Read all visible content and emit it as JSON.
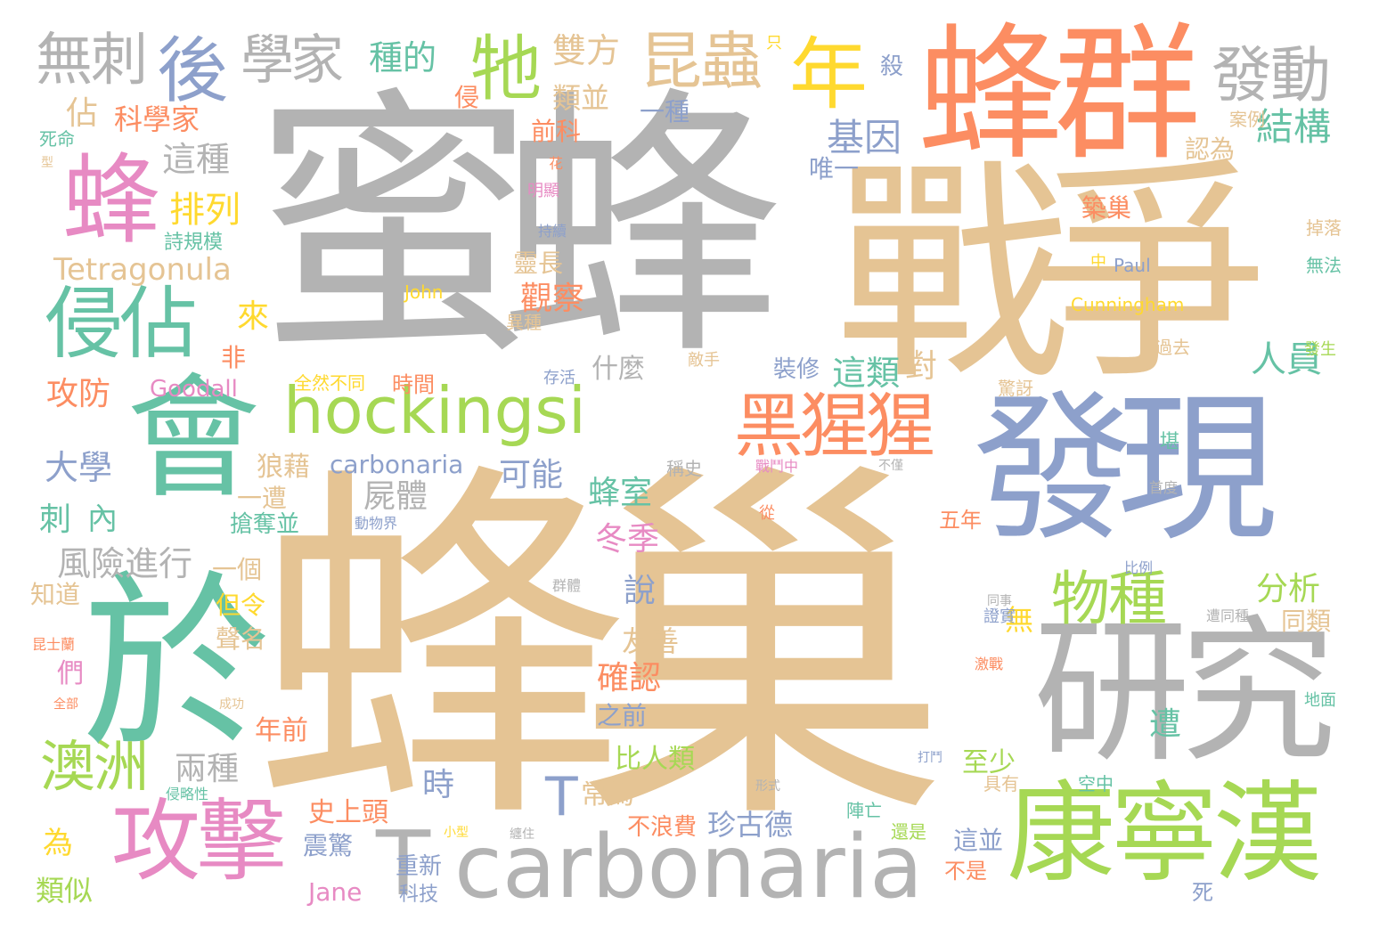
{
  "word_cloud": {
    "palette": {
      "gray": "#b3b3b3",
      "tan": "#e5c494",
      "orange": "#fc8d62",
      "teal": "#66c2a5",
      "blue": "#8da0cb",
      "pink": "#e78ac3",
      "green": "#a6d854",
      "yellow": "#ffd92f"
    },
    "words": [
      {
        "text": "蜜蜂",
        "color": "gray"
      },
      {
        "text": "蜂巢",
        "color": "tan"
      },
      {
        "text": "戰爭",
        "color": "tan"
      },
      {
        "text": "蜂群",
        "color": "orange"
      },
      {
        "text": "發現",
        "color": "blue"
      },
      {
        "text": "於",
        "color": "teal"
      },
      {
        "text": "會",
        "color": "teal"
      },
      {
        "text": "研究",
        "color": "gray"
      },
      {
        "text": "康寧漢",
        "color": "green"
      },
      {
        "text": "carbonaria",
        "color": "gray"
      },
      {
        "text": "hockingsi",
        "color": "green"
      },
      {
        "text": "攻擊",
        "color": "pink"
      },
      {
        "text": "侵佔",
        "color": "teal"
      },
      {
        "text": "蜂",
        "color": "pink"
      },
      {
        "text": "後",
        "color": "blue"
      },
      {
        "text": "牠",
        "color": "green"
      },
      {
        "text": "年",
        "color": "yellow"
      },
      {
        "text": "昆蟲",
        "color": "tan"
      },
      {
        "text": "發動",
        "color": "gray"
      },
      {
        "text": "無刺",
        "color": "gray"
      },
      {
        "text": "學家",
        "color": "gray"
      },
      {
        "text": "黑猩猩",
        "color": "orange"
      },
      {
        "text": "物種",
        "color": "green"
      },
      {
        "text": "澳洲",
        "color": "green"
      },
      {
        "text": "T",
        "color": "gray"
      },
      {
        "text": "T",
        "color": "blue"
      },
      {
        "text": "種的",
        "color": "teal"
      },
      {
        "text": "雙方",
        "color": "tan"
      },
      {
        "text": "佔",
        "color": "tan"
      },
      {
        "text": "科學家",
        "color": "orange"
      },
      {
        "text": "這種",
        "color": "gray"
      },
      {
        "text": "排列",
        "color": "yellow"
      },
      {
        "text": "Tetragonula",
        "color": "tan"
      },
      {
        "text": "基因",
        "color": "blue"
      },
      {
        "text": "結構",
        "color": "teal"
      },
      {
        "text": "類並",
        "color": "tan"
      },
      {
        "text": "前科",
        "color": "orange"
      },
      {
        "text": "一種",
        "color": "blue"
      },
      {
        "text": "侵",
        "color": "orange"
      },
      {
        "text": "殺",
        "color": "blue"
      },
      {
        "text": "唯一",
        "color": "blue"
      },
      {
        "text": "認為",
        "color": "tan"
      },
      {
        "text": "築巢",
        "color": "orange"
      },
      {
        "text": "靈長",
        "color": "tan"
      },
      {
        "text": "觀察",
        "color": "orange"
      },
      {
        "text": "人員",
        "color": "teal"
      },
      {
        "text": "這類",
        "color": "teal"
      },
      {
        "text": "對",
        "color": "tan"
      },
      {
        "text": "裝修",
        "color": "blue"
      },
      {
        "text": "什麼",
        "color": "gray"
      },
      {
        "text": "來",
        "color": "yellow"
      },
      {
        "text": "非",
        "color": "orange"
      },
      {
        "text": "攻防",
        "color": "orange"
      },
      {
        "text": "Goodall",
        "color": "pink"
      },
      {
        "text": "時間",
        "color": "orange"
      },
      {
        "text": "全然不同",
        "color": "yellow"
      },
      {
        "text": "大學",
        "color": "blue"
      },
      {
        "text": "狼藉",
        "color": "tan"
      },
      {
        "text": "carbonaria",
        "color": "blue"
      },
      {
        "text": "可能",
        "color": "blue"
      },
      {
        "text": "蜂室",
        "color": "teal"
      },
      {
        "text": "屍體",
        "color": "gray"
      },
      {
        "text": "刺",
        "color": "teal"
      },
      {
        "text": "內",
        "color": "teal"
      },
      {
        "text": "一遭",
        "color": "tan"
      },
      {
        "text": "搶奪並",
        "color": "teal"
      },
      {
        "text": "冬季",
        "color": "pink"
      },
      {
        "text": "風險進行",
        "color": "gray"
      },
      {
        "text": "一個",
        "color": "tan"
      },
      {
        "text": "說",
        "color": "blue"
      },
      {
        "text": "分析",
        "color": "green"
      },
      {
        "text": "五年",
        "color": "orange"
      },
      {
        "text": "知道",
        "color": "tan"
      },
      {
        "text": "但令",
        "color": "yellow"
      },
      {
        "text": "聲名",
        "color": "tan"
      },
      {
        "text": "友善",
        "color": "tan"
      },
      {
        "text": "無",
        "color": "yellow"
      },
      {
        "text": "同類",
        "color": "tan"
      },
      {
        "text": "們",
        "color": "pink"
      },
      {
        "text": "確認",
        "color": "orange"
      },
      {
        "text": "之前",
        "color": "blue"
      },
      {
        "text": "年前",
        "color": "orange"
      },
      {
        "text": "遭",
        "color": "teal"
      },
      {
        "text": "比人類",
        "color": "green"
      },
      {
        "text": "至少",
        "color": "green"
      },
      {
        "text": "兩種",
        "color": "gray"
      },
      {
        "text": "時",
        "color": "blue"
      },
      {
        "text": "常為",
        "color": "tan"
      },
      {
        "text": "史上頭",
        "color": "orange"
      },
      {
        "text": "珍古德",
        "color": "blue"
      },
      {
        "text": "為",
        "color": "yellow"
      },
      {
        "text": "震驚",
        "color": "blue"
      },
      {
        "text": "重新",
        "color": "blue"
      },
      {
        "text": "不浪費",
        "color": "orange"
      },
      {
        "text": "這並",
        "color": "blue"
      },
      {
        "text": "不是",
        "color": "orange"
      },
      {
        "text": "類似",
        "color": "green"
      },
      {
        "text": "Jane",
        "color": "pink"
      },
      {
        "text": "科技",
        "color": "blue"
      },
      {
        "text": "死",
        "color": "blue"
      },
      {
        "text": "John",
        "color": "yellow"
      },
      {
        "text": "Paul",
        "color": "blue"
      },
      {
        "text": "Cunningham",
        "color": "yellow"
      },
      {
        "text": "詩規模",
        "color": "teal"
      },
      {
        "text": "死命",
        "color": "teal"
      },
      {
        "text": "型",
        "color": "tan"
      },
      {
        "text": "只",
        "color": "yellow"
      },
      {
        "text": "案例",
        "color": "tan"
      },
      {
        "text": "中",
        "color": "yellow"
      },
      {
        "text": "無法",
        "color": "teal"
      },
      {
        "text": "掉落",
        "color": "tan"
      },
      {
        "text": "過去",
        "color": "tan"
      },
      {
        "text": "發生",
        "color": "green"
      },
      {
        "text": "異種",
        "color": "tan"
      },
      {
        "text": "敵手",
        "color": "tan"
      },
      {
        "text": "存活",
        "color": "blue"
      },
      {
        "text": "稱史",
        "color": "gray"
      },
      {
        "text": "驚訝",
        "color": "tan"
      },
      {
        "text": "堪",
        "color": "teal"
      },
      {
        "text": "地面",
        "color": "teal"
      },
      {
        "text": "具有",
        "color": "tan"
      },
      {
        "text": "空中",
        "color": "teal"
      },
      {
        "text": "陣亡",
        "color": "teal"
      },
      {
        "text": "還是",
        "color": "green"
      },
      {
        "text": "花",
        "color": "orange"
      },
      {
        "text": "明顯",
        "color": "pink"
      },
      {
        "text": "持續",
        "color": "blue"
      },
      {
        "text": "群體",
        "color": "gray"
      },
      {
        "text": "形式",
        "color": "gray"
      },
      {
        "text": "小型",
        "color": "yellow"
      },
      {
        "text": "纏住",
        "color": "gray"
      },
      {
        "text": "侵略性",
        "color": "teal"
      },
      {
        "text": "昆士蘭",
        "color": "orange"
      },
      {
        "text": "比例",
        "color": "blue"
      },
      {
        "text": "首度",
        "color": "gray"
      },
      {
        "text": "證實",
        "color": "blue"
      },
      {
        "text": "遭同種",
        "color": "gray"
      },
      {
        "text": "激戰",
        "color": "orange"
      },
      {
        "text": "同事",
        "color": "gray"
      },
      {
        "text": "從",
        "color": "orange"
      },
      {
        "text": "不僅",
        "color": "gray"
      },
      {
        "text": "戰鬥中",
        "color": "pink"
      },
      {
        "text": "動物界",
        "color": "blue"
      },
      {
        "text": "成功",
        "color": "tan"
      },
      {
        "text": "全部",
        "color": "orange"
      },
      {
        "text": "打鬥",
        "color": "blue"
      }
    ]
  }
}
